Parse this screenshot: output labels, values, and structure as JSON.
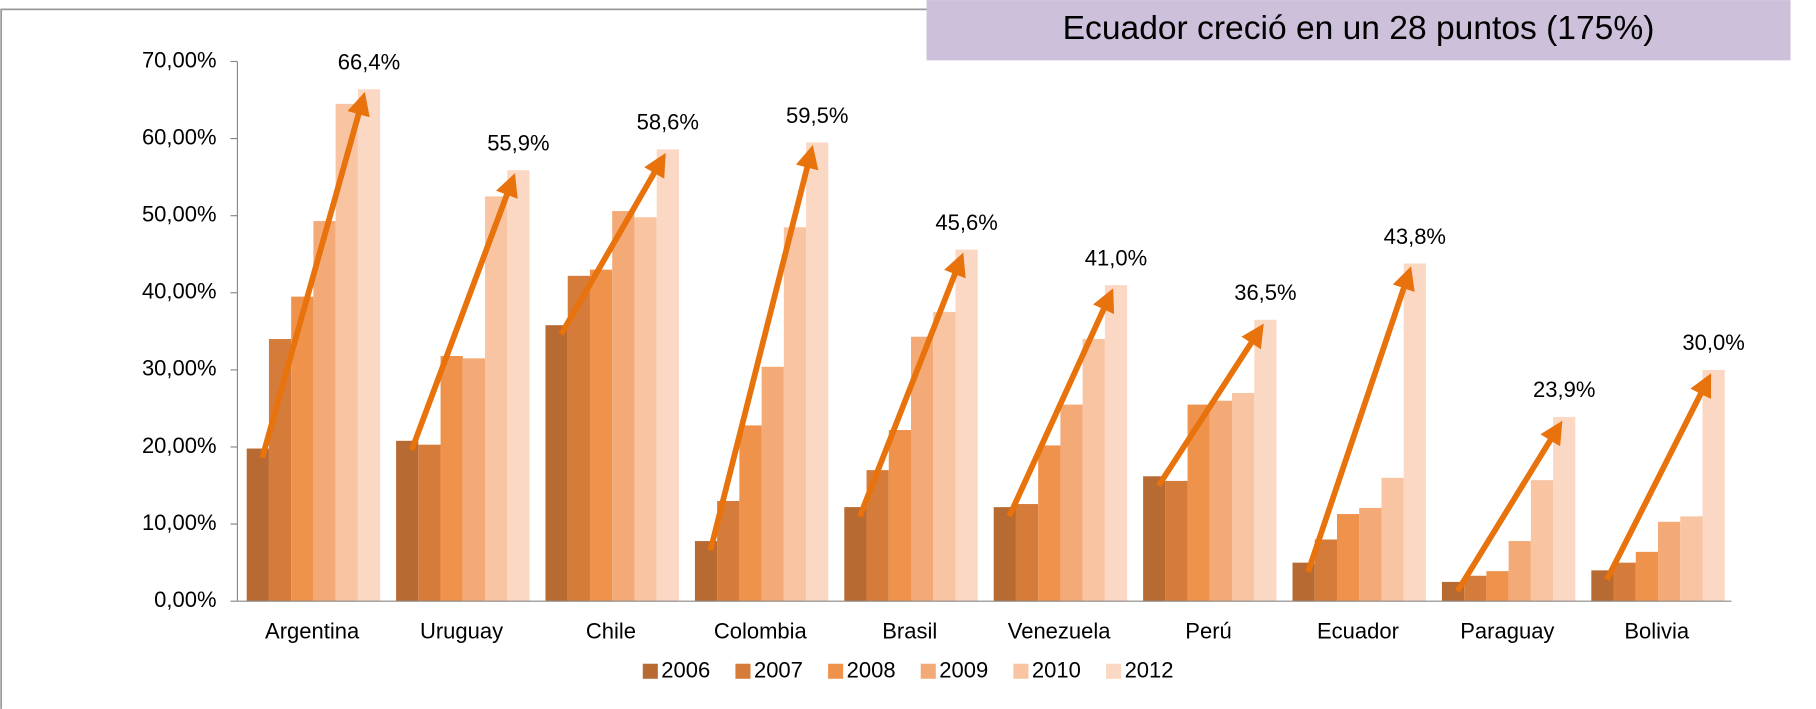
{
  "chart_data": {
    "type": "bar",
    "annotation": "Ecuador creció en un 28 puntos (175%)",
    "categories": [
      "Argentina",
      "Uruguay",
      "Chile",
      "Colombia",
      "Brasil",
      "Venezuela",
      "Perú",
      "Ecuador",
      "Paraguay",
      "Bolivia"
    ],
    "series": [
      {
        "name": "2006",
        "color": "#b86a33",
        "values": [
          19.8,
          20.8,
          35.8,
          7.8,
          12.2,
          12.2,
          16.2,
          5.0,
          2.5,
          4.0
        ]
      },
      {
        "name": "2007",
        "color": "#d67c3a",
        "values": [
          34.0,
          20.3,
          42.2,
          13.0,
          17.0,
          12.6,
          15.6,
          8.0,
          3.3,
          5.0
        ]
      },
      {
        "name": "2008",
        "color": "#ee924c",
        "values": [
          39.5,
          31.8,
          43.0,
          22.8,
          22.2,
          20.2,
          25.5,
          11.3,
          3.9,
          6.4
        ]
      },
      {
        "name": "2009",
        "color": "#f4aa76",
        "values": [
          49.3,
          31.5,
          50.6,
          30.4,
          34.3,
          25.5,
          26.0,
          12.1,
          7.8,
          10.3
        ]
      },
      {
        "name": "2010",
        "color": "#f8c4a2",
        "values": [
          64.5,
          52.5,
          49.8,
          48.5,
          37.5,
          34.0,
          27.0,
          16.0,
          15.7,
          11.0
        ]
      },
      {
        "name": "2012",
        "color": "#fbd8c3",
        "values": [
          66.4,
          55.9,
          58.6,
          59.5,
          45.6,
          41.0,
          36.5,
          43.8,
          23.9,
          30.0
        ],
        "value_labels": [
          "66,4%",
          "55,9%",
          "58,6%",
          "59,5%",
          "45,6%",
          "41,0%",
          "36,5%",
          "43,8%",
          "23,9%",
          "30,0%"
        ]
      }
    ],
    "ylim": [
      0,
      70
    ],
    "yticks": [
      {
        "value": 0,
        "label": "0,00%"
      },
      {
        "value": 10,
        "label": "10,00%"
      },
      {
        "value": 20,
        "label": "20,00%"
      },
      {
        "value": 30,
        "label": "30,00%"
      },
      {
        "value": 40,
        "label": "40,00%"
      },
      {
        "value": 50,
        "label": "50,00%"
      },
      {
        "value": 60,
        "label": "60,00%"
      },
      {
        "value": 70,
        "label": "70,00%"
      }
    ],
    "arrow_color": "#e8720c",
    "legend": "bottom"
  }
}
